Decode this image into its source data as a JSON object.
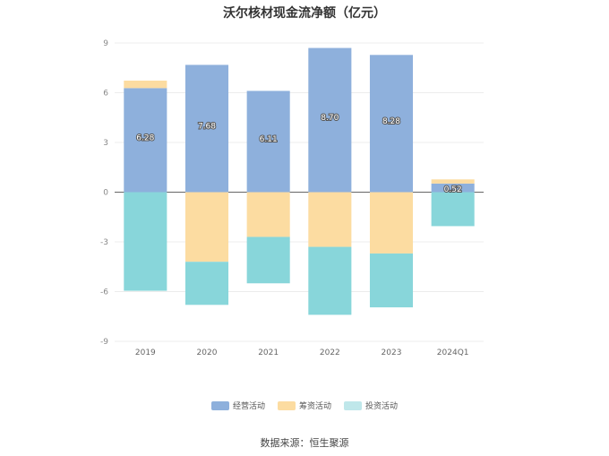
{
  "chart_data": {
    "type": "bar",
    "stacked": true,
    "title": "沃尔核材现金流净额（亿元）",
    "categories": [
      "2019",
      "2020",
      "2021",
      "2022",
      "2023",
      "2024Q1"
    ],
    "series": [
      {
        "name": "经营活动",
        "color": "#8eb0dc",
        "values": [
          6.28,
          7.68,
          6.11,
          8.7,
          8.28,
          0.52
        ]
      },
      {
        "name": "筹资活动",
        "color": "#fcdca1",
        "values": [
          0.45,
          -4.2,
          -2.7,
          -3.3,
          -3.7,
          0.25
        ]
      },
      {
        "name": "投资活动",
        "color": "#88d6da",
        "values": [
          -5.95,
          -2.6,
          -2.8,
          -4.1,
          -3.25,
          -2.05
        ]
      }
    ],
    "data_labels": [
      "6.28",
      "7.68",
      "6.11",
      "8.70",
      "8.28",
      "0.52"
    ],
    "ylim": [
      -9,
      9
    ],
    "yticks": [
      9,
      6,
      3,
      0,
      -3,
      -6,
      -9
    ],
    "grid": true,
    "legend_position": "bottom",
    "source": "数据来源：恒生聚源"
  }
}
